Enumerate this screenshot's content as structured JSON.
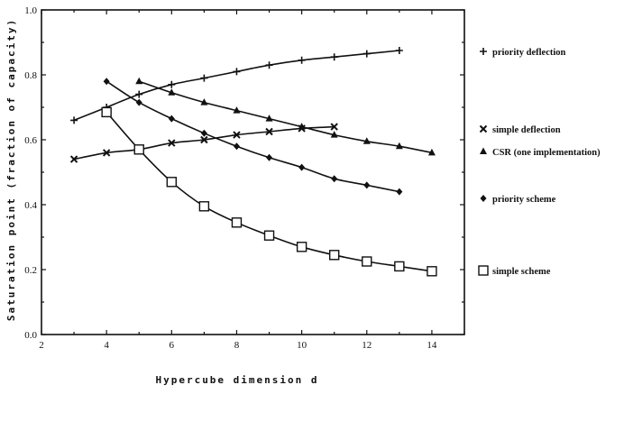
{
  "chart_data": {
    "type": "line",
    "title": "",
    "xlabel": "Hypercube dimension d",
    "ylabel": "Saturation point (fraction of capacity)",
    "xlim": [
      2,
      15
    ],
    "ylim": [
      0,
      1.0
    ],
    "x_ticks": [
      "2",
      "4",
      "6",
      "8",
      "10",
      "12",
      "14"
    ],
    "y_ticks": [
      "0.0",
      "0.2",
      "0.4",
      "0.6",
      "0.8",
      "1.0"
    ],
    "legend_position": "right",
    "grid": false,
    "series": [
      {
        "name": "priority deflection",
        "marker": "plus",
        "x": [
          3,
          4,
          5,
          6,
          7,
          8,
          9,
          10,
          11,
          12,
          13
        ],
        "y": [
          0.66,
          0.7,
          0.74,
          0.77,
          0.79,
          0.81,
          0.83,
          0.845,
          0.855,
          0.865,
          0.875
        ]
      },
      {
        "name": "simple deflection",
        "marker": "x",
        "x": [
          3,
          4,
          5,
          6,
          7,
          8,
          9,
          10,
          11
        ],
        "y": [
          0.54,
          0.56,
          0.57,
          0.59,
          0.6,
          0.615,
          0.625,
          0.635,
          0.64
        ]
      },
      {
        "name": "CSR (one implementation)",
        "marker": "triangle",
        "x": [
          5,
          6,
          7,
          8,
          9,
          10,
          11,
          12,
          13,
          14
        ],
        "y": [
          0.78,
          0.745,
          0.715,
          0.69,
          0.665,
          0.64,
          0.615,
          0.595,
          0.58,
          0.56
        ]
      },
      {
        "name": "priority scheme",
        "marker": "diamond",
        "x": [
          4,
          5,
          6,
          7,
          8,
          9,
          10,
          11,
          12,
          13
        ],
        "y": [
          0.78,
          0.715,
          0.665,
          0.62,
          0.58,
          0.545,
          0.515,
          0.48,
          0.46,
          0.44
        ]
      },
      {
        "name": "simple scheme",
        "marker": "square",
        "x": [
          4,
          5,
          6,
          7,
          8,
          9,
          10,
          11,
          12,
          13,
          14
        ],
        "y": [
          0.685,
          0.57,
          0.47,
          0.395,
          0.345,
          0.305,
          0.27,
          0.245,
          0.225,
          0.21,
          0.195
        ]
      }
    ]
  }
}
